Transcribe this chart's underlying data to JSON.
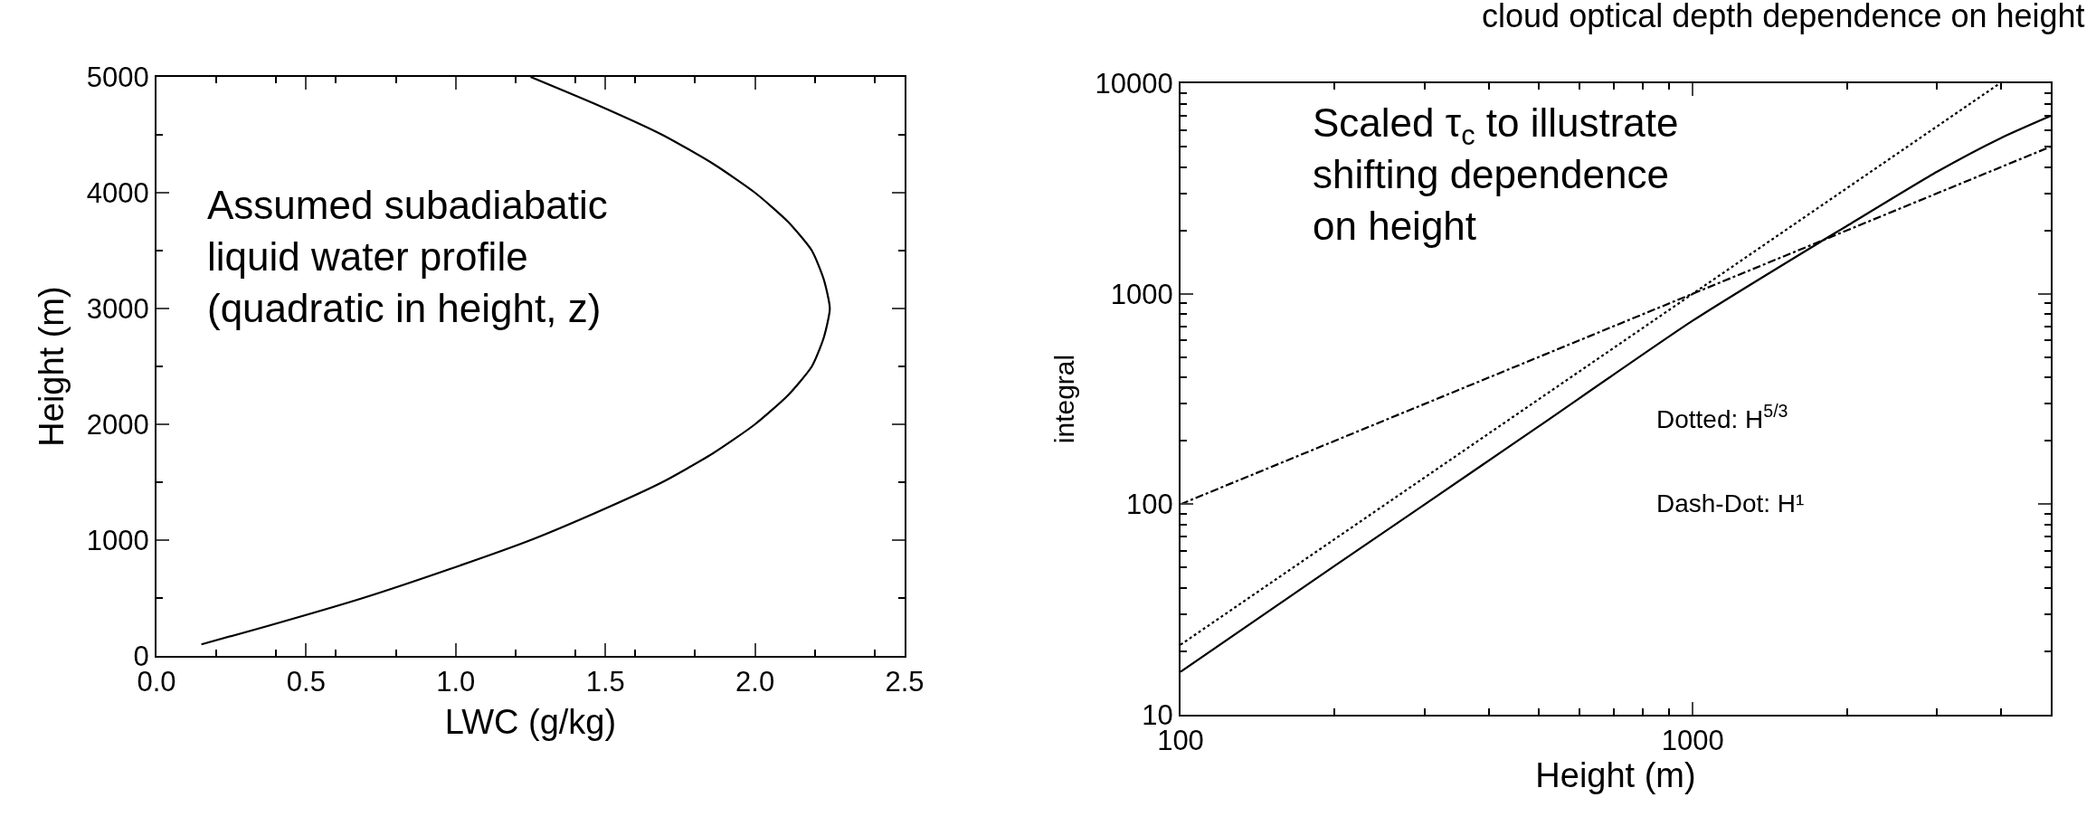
{
  "chart_data": [
    {
      "type": "line",
      "xlabel": "LWC (g/kg)",
      "ylabel": "Height (m)",
      "annotations": [
        "Assumed subadiabatic\nliquid water profile\n(quadratic in height, z)"
      ],
      "series": [
        {
          "color": "#000000",
          "line_style": "solid",
          "x": [
            0.15,
            0.36,
            0.69,
            0.98,
            1.25,
            1.48,
            1.69,
            1.86,
            2.0,
            2.11,
            2.19,
            2.23,
            2.25,
            2.23,
            2.19,
            2.11,
            2.0,
            1.86,
            1.69,
            1.48,
            1.25
          ],
          "values": [
            100,
            250,
            500,
            750,
            1000,
            1250,
            1500,
            1750,
            2000,
            2250,
            2500,
            2750,
            3000,
            3250,
            3500,
            3750,
            4000,
            4250,
            4500,
            4750,
            5000
          ]
        }
      ],
      "xlim": [
        0,
        2.5
      ],
      "xticks": [
        {
          "value": 0,
          "label": "0.0"
        },
        0.5,
        {
          "value": 1,
          "label": "1.0"
        },
        1.5,
        {
          "value": 2,
          "label": "2.0"
        },
        2.5
      ],
      "ylim": [
        0,
        5000
      ],
      "yticks": [
        0,
        1000,
        2000,
        3000,
        4000,
        5000
      ],
      "grid": false
    },
    {
      "type": "line",
      "title": "cloud optical depth dependence on height",
      "xlabel": "Height (m)",
      "ylabel": "integral",
      "annotations": [
        "Scaled τ$_{c}$ to illustrate\nshifting dependence\non height",
        "Dotted: H$^{5/3}$",
        "Dash-Dot: H¹"
      ],
      "series": [
        {
          "color": "#000000",
          "line_style": "solid",
          "x": [
            100,
            200,
            300,
            500,
            1000,
            1800,
            2000,
            3000,
            4000,
            5000
          ],
          "values": [
            16,
            51,
            100,
            234,
            745,
            1800,
            2100,
            3800,
            5500,
            7000
          ]
        },
        {
          "color": "#000000",
          "line_style": "dotted",
          "x": [
            100,
            3980
          ],
          "values": [
            21.5,
            10000
          ]
        },
        {
          "color": "#000000",
          "line_style": "dashdot",
          "x": [
            100,
            5000
          ],
          "values": [
            100,
            5000
          ]
        }
      ],
      "log": "xy",
      "xlim": [
        100,
        5000
      ],
      "xticks": [
        100,
        1000
      ],
      "ylim": [
        10,
        10000
      ],
      "yticks": [
        10,
        100,
        1000,
        10000
      ],
      "grid": false
    }
  ]
}
